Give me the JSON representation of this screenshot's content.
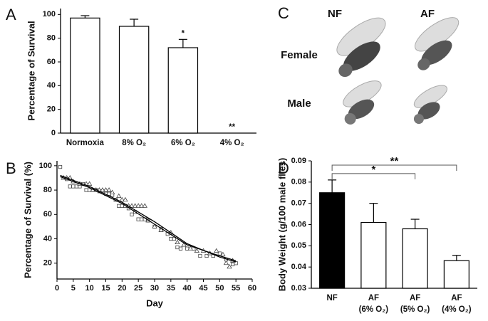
{
  "chart_data": [
    {
      "type": "bar",
      "panel": "A",
      "ylabel": "Percentage of Survival",
      "categories": [
        "Normoxia",
        "8% O₂",
        "6% O₂",
        "4% O₂"
      ],
      "values": [
        97,
        90,
        72,
        0
      ],
      "errors": [
        2,
        6,
        7,
        0
      ],
      "color": "#ffffff",
      "ylim": [
        0,
        105
      ],
      "yticks": [
        0,
        20,
        40,
        60,
        80,
        100
      ],
      "annotations": [
        {
          "category": 2,
          "text": "*"
        },
        {
          "category": 3,
          "text": "**"
        }
      ]
    },
    {
      "type": "scatter",
      "panel": "B",
      "xlabel": "Day",
      "ylabel": "Percentage of  Survival  (%)",
      "xlim": [
        0,
        60
      ],
      "xticks": [
        0,
        5,
        10,
        15,
        20,
        25,
        30,
        35,
        40,
        45,
        50,
        55,
        60
      ],
      "ylim": [
        7,
        104
      ],
      "yticks": [
        20,
        40,
        60,
        80,
        100
      ],
      "series": [
        {
          "marker": "square",
          "x": [
            1,
            3,
            4,
            5,
            6,
            7,
            8,
            9,
            10,
            11,
            12,
            13,
            14,
            15,
            16,
            17,
            18,
            19,
            20,
            21,
            22,
            23,
            24,
            25,
            26,
            27,
            28,
            30,
            32,
            34,
            35,
            36,
            37,
            38,
            40,
            42,
            44,
            46,
            48,
            50,
            52,
            54,
            55
          ],
          "values": [
            99,
            89,
            83,
            83,
            83,
            83,
            85,
            80,
            80,
            80,
            80,
            79,
            79,
            77,
            77,
            76,
            72,
            67,
            67,
            67,
            65,
            60,
            62,
            56,
            56,
            56,
            55,
            50,
            48,
            44,
            40,
            40,
            33,
            32,
            32,
            32,
            26,
            26,
            26,
            28,
            23,
            19,
            20
          ]
        },
        {
          "marker": "triangle",
          "x": [
            2,
            3,
            4,
            5,
            7,
            9,
            10,
            11,
            12,
            13,
            14,
            15,
            16,
            17,
            19,
            20,
            21,
            22,
            23,
            24,
            25,
            26,
            27,
            28,
            30,
            32,
            35,
            37,
            39,
            41,
            43,
            45,
            47,
            49,
            51,
            52,
            53,
            54
          ],
          "values": [
            90,
            90,
            90,
            87,
            85,
            85,
            85,
            80,
            80,
            80,
            80,
            80,
            80,
            78,
            75,
            72,
            72,
            67,
            67,
            67,
            67,
            67,
            67,
            55,
            50,
            47,
            45,
            37,
            35,
            32,
            30,
            30,
            28,
            30,
            27,
            20,
            17,
            22
          ]
        },
        {
          "marker": "line",
          "x": [
            1,
            10,
            20,
            30,
            40,
            50,
            55
          ],
          "values": [
            92,
            83,
            70,
            54,
            36,
            25,
            21
          ]
        },
        {
          "marker": "line",
          "x": [
            1,
            10,
            20,
            30,
            40,
            50,
            55
          ],
          "values": [
            91,
            82,
            69,
            52,
            35,
            26,
            22
          ]
        }
      ]
    },
    {
      "type": "bar",
      "panel": "D",
      "ylabel": "Body Weight (g/100 male flies)",
      "categories": [
        [
          "NF"
        ],
        [
          "AF",
          "(6% O₂)"
        ],
        [
          "AF",
          "(5% O₂)"
        ],
        [
          "AF",
          "(4% O₂)"
        ]
      ],
      "values": [
        0.075,
        0.061,
        0.058,
        0.043
      ],
      "errors": [
        0.006,
        0.009,
        0.0045,
        0.0025
      ],
      "colors": [
        "#000000",
        "#ffffff",
        "#ffffff",
        "#ffffff"
      ],
      "ylim": [
        0.03,
        0.09
      ],
      "yticks": [
        0.03,
        0.04,
        0.05,
        0.06,
        0.07,
        0.08,
        0.09
      ],
      "brackets": [
        {
          "from": 0,
          "to": 2,
          "y": 0.084,
          "text": "*"
        },
        {
          "from": 0,
          "to": 3,
          "y": 0.088,
          "text": "**"
        }
      ]
    }
  ],
  "photo_panel": {
    "panel": "C",
    "columns": [
      "NF",
      "AF"
    ],
    "rows": [
      "Female",
      "Male"
    ]
  }
}
